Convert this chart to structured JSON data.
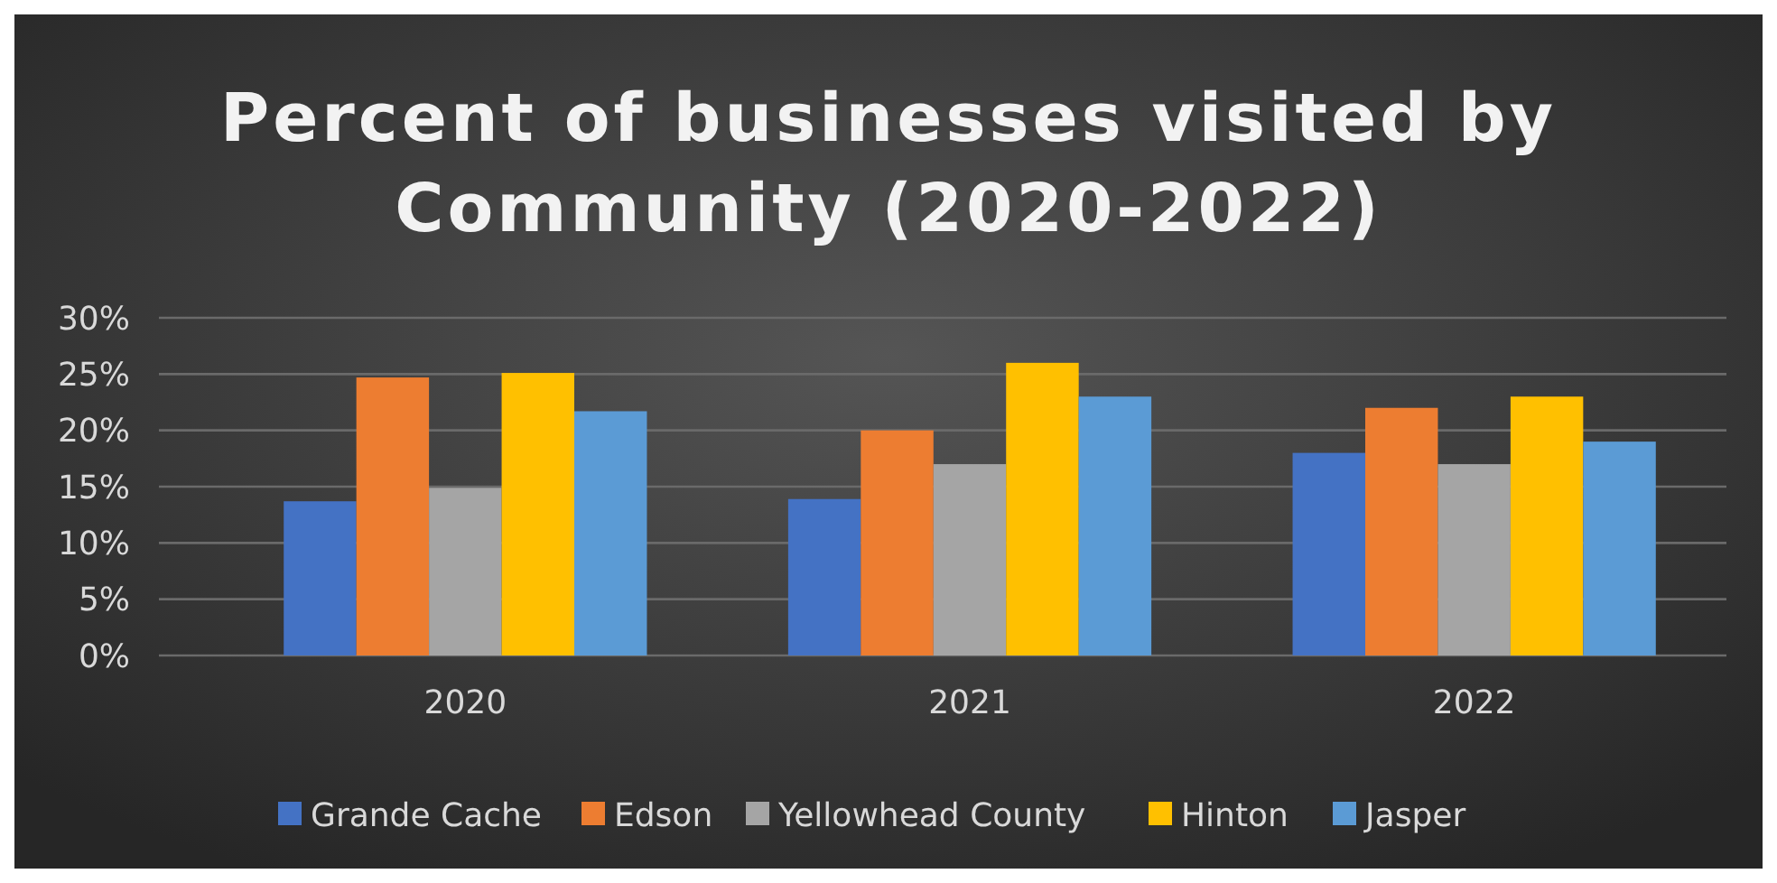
{
  "chart_data": {
    "type": "bar",
    "title": "Percent of businesses visited by Community (2020-2022)",
    "categories": [
      "2020",
      "2021",
      "2022"
    ],
    "series": [
      {
        "name": "Grande Cache",
        "color": "#4472c4",
        "values": [
          13.7,
          13.9,
          18
        ]
      },
      {
        "name": "Edson",
        "color": "#ed7d31",
        "values": [
          24.7,
          20,
          22
        ]
      },
      {
        "name": "Yellowhead County",
        "color": "#a5a5a5",
        "values": [
          14.9,
          17,
          17
        ]
      },
      {
        "name": "Hinton",
        "color": "#ffc000",
        "values": [
          25.1,
          26,
          23
        ]
      },
      {
        "name": "Jasper",
        "color": "#5b9bd5",
        "values": [
          21.7,
          23,
          19
        ]
      }
    ],
    "ylim": [
      0,
      30
    ],
    "yticks": [
      {
        "value": 0,
        "label": "0%"
      },
      {
        "value": 5,
        "label": "5%"
      },
      {
        "value": 10,
        "label": "10%"
      },
      {
        "value": 15,
        "label": "15%"
      },
      {
        "value": 20,
        "label": "20%"
      },
      {
        "value": 25,
        "label": "25%"
      },
      {
        "value": 30,
        "label": "30%"
      }
    ],
    "grid": "y",
    "legend": "bottom"
  }
}
